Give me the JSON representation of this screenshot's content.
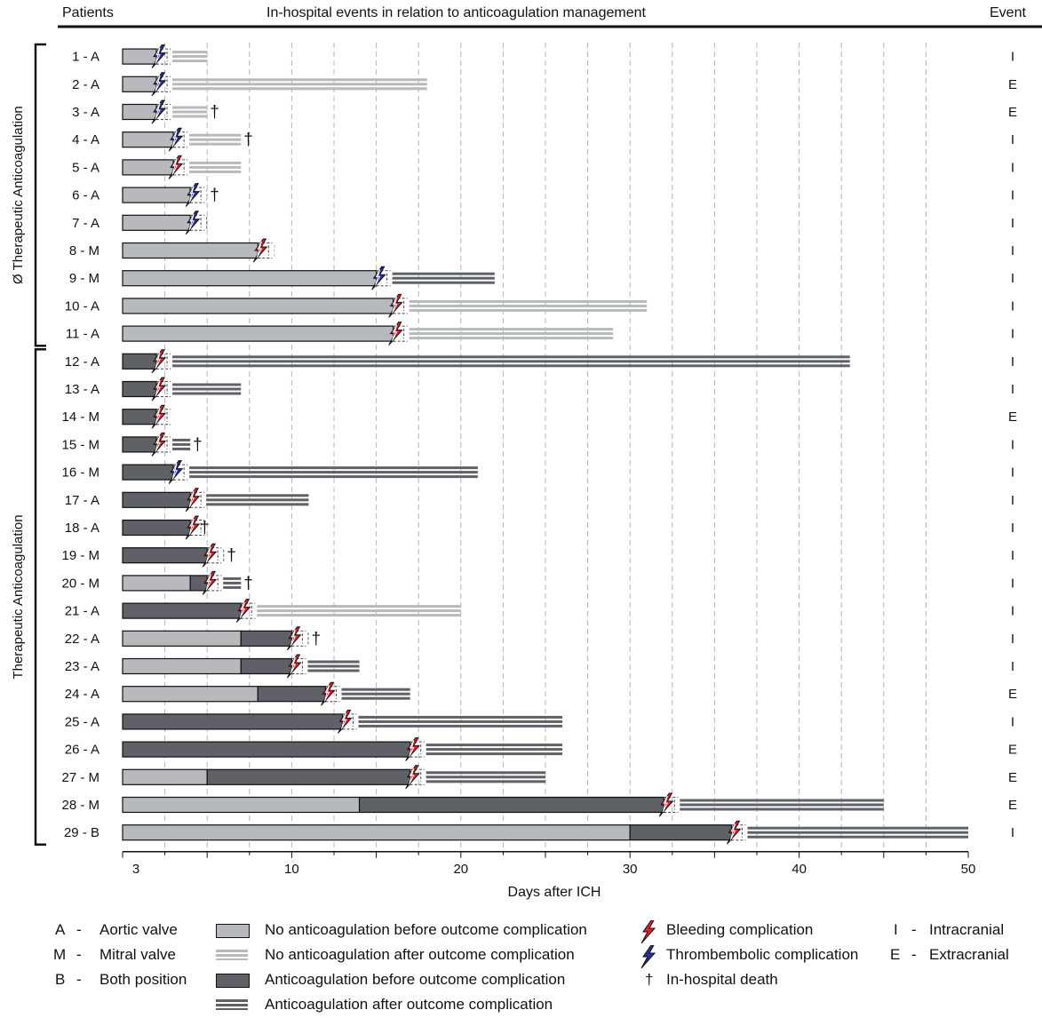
{
  "header": {
    "patients": "Patients",
    "title": "In-hospital events in relation to anticoagulation management",
    "event": "Event"
  },
  "colors": {
    "no_ac": "#b7b9bc",
    "ac": "#5f6166",
    "bleeding": "#e0202a",
    "thrombo": "#2a2f9a",
    "grid": "#b5b5b5"
  },
  "chart_data": {
    "type": "gantt",
    "xlabel": "Days after ICH",
    "xlim": [
      0,
      50
    ],
    "xticks": [
      3,
      10,
      20,
      30,
      40,
      50
    ],
    "groups": [
      {
        "label": "Ø Therapeutic Anticoagulation",
        "from": 0,
        "to": 10
      },
      {
        "label": "Therapeutic Anticoagulation",
        "from": 11,
        "to": 28
      }
    ],
    "patients": [
      {
        "label": "1 - A",
        "no_ac_before": 2,
        "ac_before": 0,
        "complication": "thrombo",
        "after": "no_ac",
        "after_end": 5,
        "death": false,
        "event": "I"
      },
      {
        "label": "2 - A",
        "no_ac_before": 2,
        "ac_before": 0,
        "complication": "thrombo",
        "after": "no_ac",
        "after_end": 18,
        "death": false,
        "event": "E"
      },
      {
        "label": "3 - A",
        "no_ac_before": 2,
        "ac_before": 0,
        "complication": "thrombo",
        "after": "no_ac",
        "after_end": 5,
        "death": true,
        "event": "E"
      },
      {
        "label": "4 - A",
        "no_ac_before": 3,
        "ac_before": 0,
        "complication": "thrombo",
        "after": "no_ac",
        "after_end": 7,
        "death": true,
        "event": "I"
      },
      {
        "label": "5 - A",
        "no_ac_before": 3,
        "ac_before": 0,
        "complication": "bleeding",
        "after": "no_ac",
        "after_end": 7,
        "death": false,
        "event": "I"
      },
      {
        "label": "6 - A",
        "no_ac_before": 4,
        "ac_before": 0,
        "complication": "thrombo",
        "after": "no_ac",
        "after_end": 5,
        "death": true,
        "event": "I"
      },
      {
        "label": "7 - A",
        "no_ac_before": 4,
        "ac_before": 0,
        "complication": "thrombo",
        "after": "ac",
        "after_end": 5,
        "death": false,
        "event": "I"
      },
      {
        "label": "8 - M",
        "no_ac_before": 8,
        "ac_before": 0,
        "complication": "bleeding",
        "after": "no_ac",
        "after_end": 9,
        "death": false,
        "event": "I"
      },
      {
        "label": "9 - M",
        "no_ac_before": 15,
        "ac_before": 0,
        "complication": "thrombo",
        "after": "ac",
        "after_end": 22,
        "death": false,
        "event": "I"
      },
      {
        "label": "10 - A",
        "no_ac_before": 16,
        "ac_before": 0,
        "complication": "bleeding",
        "after": "no_ac",
        "after_end": 31,
        "death": false,
        "event": "I"
      },
      {
        "label": "11 - A",
        "no_ac_before": 16,
        "ac_before": 0,
        "complication": "bleeding",
        "after": "no_ac",
        "after_end": 29,
        "death": false,
        "event": "I"
      },
      {
        "label": "12 - A",
        "no_ac_before": 0,
        "ac_before": 2,
        "complication": "bleeding",
        "after": "ac",
        "after_end": 43,
        "death": false,
        "event": "I"
      },
      {
        "label": "13 - A",
        "no_ac_before": 0,
        "ac_before": 2,
        "complication": "bleeding",
        "after": "ac",
        "after_end": 7,
        "death": false,
        "event": "I"
      },
      {
        "label": "14 - M",
        "no_ac_before": 0,
        "ac_before": 2,
        "complication": "bleeding",
        "after": "none",
        "after_end": 2,
        "death": false,
        "event": "E"
      },
      {
        "label": "15 - M",
        "no_ac_before": 0,
        "ac_before": 2,
        "complication": "bleeding",
        "after": "ac",
        "after_end": 4,
        "death": true,
        "event": "I"
      },
      {
        "label": "16 - M",
        "no_ac_before": 0,
        "ac_before": 3,
        "complication": "thrombo",
        "after": "ac",
        "after_end": 21,
        "death": false,
        "event": "I"
      },
      {
        "label": "17 - A",
        "no_ac_before": 0,
        "ac_before": 4,
        "complication": "bleeding",
        "after": "ac",
        "after_end": 11,
        "death": false,
        "event": "I"
      },
      {
        "label": "18 - A",
        "no_ac_before": 0,
        "ac_before": 4,
        "complication": "bleeding",
        "after": "none",
        "after_end": 4,
        "death": true,
        "event": "I"
      },
      {
        "label": "19 - M",
        "no_ac_before": 0,
        "ac_before": 5,
        "complication": "bleeding",
        "after": "ac",
        "after_end": 6,
        "death": true,
        "event": "I"
      },
      {
        "label": "20 - M",
        "no_ac_before": 4,
        "ac_before": 5,
        "complication": "bleeding",
        "after": "ac",
        "after_end": 7,
        "death": true,
        "event": "I"
      },
      {
        "label": "21 - A",
        "no_ac_before": 0,
        "ac_before": 7,
        "complication": "bleeding",
        "after": "no_ac",
        "after_end": 20,
        "death": false,
        "event": "I"
      },
      {
        "label": "22 - A",
        "no_ac_before": 7,
        "ac_before": 10,
        "complication": "bleeding",
        "after": "ac",
        "after_end": 11,
        "death": true,
        "event": "I"
      },
      {
        "label": "23 - A",
        "no_ac_before": 7,
        "ac_before": 10,
        "complication": "bleeding",
        "after": "ac",
        "after_end": 14,
        "death": false,
        "event": "I"
      },
      {
        "label": "24 - A",
        "no_ac_before": 8,
        "ac_before": 12,
        "complication": "bleeding",
        "after": "ac",
        "after_end": 17,
        "death": false,
        "event": "E"
      },
      {
        "label": "25 - A",
        "no_ac_before": 0,
        "ac_before": 13,
        "complication": "bleeding",
        "after": "ac",
        "after_end": 26,
        "death": false,
        "event": "I"
      },
      {
        "label": "26 - A",
        "no_ac_before": 0,
        "ac_before": 17,
        "complication": "bleeding",
        "after": "ac",
        "after_end": 26,
        "death": false,
        "event": "E"
      },
      {
        "label": "27 - M",
        "no_ac_before": 5,
        "ac_before": 17,
        "complication": "bleeding",
        "after": "ac",
        "after_end": 25,
        "death": false,
        "event": "E"
      },
      {
        "label": "28 - M",
        "no_ac_before": 14,
        "ac_before": 32,
        "complication": "bleeding",
        "after": "ac",
        "after_end": 45,
        "death": false,
        "event": "E"
      },
      {
        "label": "29 - B",
        "no_ac_before": 30,
        "ac_before": 36,
        "complication": "bleeding",
        "after": "ac",
        "after_end": 50,
        "death": false,
        "event": "I"
      }
    ]
  },
  "legend": {
    "valves": [
      {
        "code": "A",
        "label": "Aortic valve"
      },
      {
        "code": "M",
        "label": "Mitral valve"
      },
      {
        "code": "B",
        "label": "Both position"
      }
    ],
    "bars": [
      "No anticoagulation before outcome complication",
      "No anticoagulation after outcome complication",
      "Anticoagulation before outcome complication",
      "Anticoagulation after outcome complication"
    ],
    "markers": [
      "Bleeding complication",
      "Thrombembolic complication",
      "In-hospital death"
    ],
    "events": [
      {
        "code": "I",
        "label": "Intracranial"
      },
      {
        "code": "E",
        "label": "Extracranial"
      }
    ],
    "dagger": "†",
    "dash": "-"
  }
}
